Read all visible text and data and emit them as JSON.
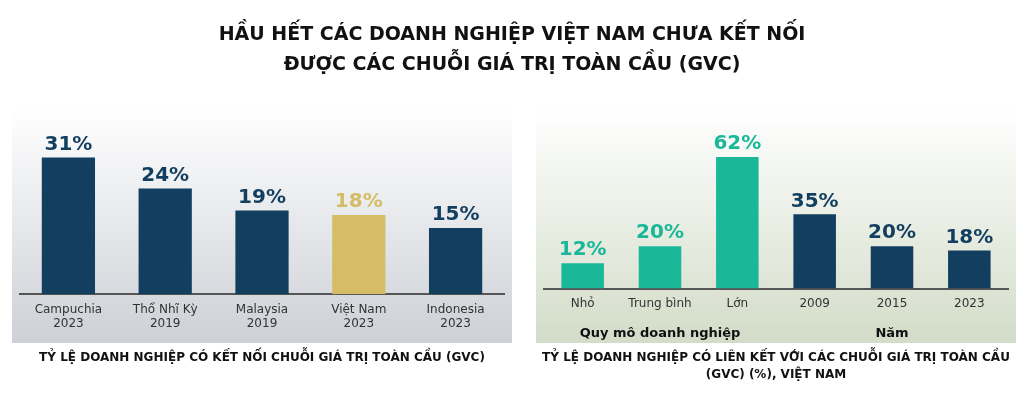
{
  "chart_data": [
    {
      "type": "bar",
      "title": "HẦU HẾT CÁC DOANH NGHIỆP VIỆT NAM CHƯA KẾT NỐI\nĐƯỢC CÁC CHUỖI GIÁ TRỊ TOÀN CẦU (GVC)",
      "xlabel": "TỶ LỆ DOANH NGHIỆP CÓ KẾT NỐI CHUỖI GIÁ TRỊ TOÀN CẦU (GVC)",
      "categories": [
        "Campuchia\n2023",
        "Thổ Nhĩ Kỳ\n2019",
        "Malaysia\n2019",
        "Việt Nam\n2023",
        "Indonesia\n2023"
      ],
      "values": [
        31,
        24,
        19,
        18,
        15
      ],
      "value_labels": [
        "31%",
        "24%",
        "19%",
        "18%",
        "15%"
      ],
      "colors": [
        "#123f5f",
        "#123f5f",
        "#123f5f",
        "#d4bd66",
        "#123f5f"
      ],
      "grid": false,
      "legend": false
    },
    {
      "type": "bar",
      "xlabel": "TỶ LỆ DOANH NGHIỆP CÓ LIÊN KẾT VỚI CÁC CHUỖI GIÁ TRỊ TOÀN CẦU\n(GVC) (%), VIỆT NAM",
      "categories": [
        "Nhỏ",
        "Trung bình",
        "Lớn",
        "2009",
        "2015",
        "2023"
      ],
      "values": [
        12,
        20,
        62,
        35,
        20,
        18
      ],
      "value_labels": [
        "12%",
        "20%",
        "62%",
        "35%",
        "20%",
        "18%"
      ],
      "colors": [
        "#1ab898",
        "#1ab898",
        "#1ab898",
        "#123f5f",
        "#123f5f",
        "#123f5f"
      ],
      "annotations": [
        "Quy mô doanh nghiệp",
        "Năm"
      ],
      "grid": false,
      "legend": false
    }
  ]
}
